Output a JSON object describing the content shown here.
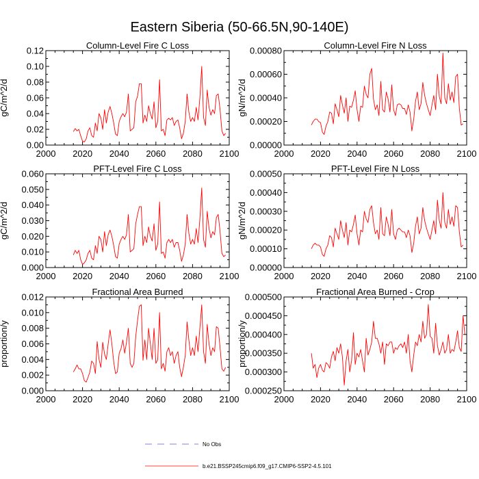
{
  "figure_title": "Eastern Siberia (50-66.5N,90-140E)",
  "legend": {
    "obs_label": "No Obs",
    "model_label": "b.e21.BSSP245cmip6.f09_g17.CMIP6-SSP2-4.5.101",
    "obs_color": "#5a5ac8",
    "model_color": "#ff0000"
  },
  "chart_data": [
    {
      "type": "line",
      "title": "Column-Level Fire C Loss",
      "ylabel": "gC/m^2/d",
      "xlabel": "",
      "xlim": [
        2000,
        2100
      ],
      "ylim": [
        0,
        0.12
      ],
      "x_ticks": [
        "2000",
        "2020",
        "2040",
        "2060",
        "2080",
        "2100"
      ],
      "y_ticks": [
        "0.00",
        "0.02",
        "0.04",
        "0.06",
        "0.08",
        "0.10",
        "0.12"
      ],
      "series": [
        {
          "name": "b.e21.BSSP245cmip6.f09_g17.CMIP6-SSP2-4.5.101",
          "x_start": 2015,
          "x_step": 1,
          "values": [
            0.017,
            0.021,
            0.018,
            0.02,
            0.012,
            0.005,
            0.004,
            0.008,
            0.018,
            0.022,
            0.012,
            0.01,
            0.028,
            0.018,
            0.04,
            0.035,
            0.02,
            0.045,
            0.028,
            0.042,
            0.049,
            0.04,
            0.028,
            0.014,
            0.012,
            0.03,
            0.036,
            0.04,
            0.036,
            0.042,
            0.065,
            0.018,
            0.02,
            0.022,
            0.055,
            0.062,
            0.078,
            0.078,
            0.028,
            0.038,
            0.03,
            0.05,
            0.04,
            0.033,
            0.055,
            0.022,
            0.03,
            0.083,
            0.018,
            0.02,
            0.012,
            0.032,
            0.034,
            0.032,
            0.035,
            0.025,
            0.03,
            0.032,
            0.022,
            0.008,
            0.015,
            0.03,
            0.065,
            0.042,
            0.03,
            0.035,
            0.03,
            0.048,
            0.032,
            0.06,
            0.1,
            0.035,
            0.025,
            0.07,
            0.048,
            0.038,
            0.045,
            0.04,
            0.063,
            0.065,
            0.045,
            0.018,
            0.012,
            0.015
          ]
        }
      ]
    },
    {
      "type": "line",
      "title": "Column-Level Fire N Loss",
      "ylabel": "gN/m^2/d",
      "xlabel": "",
      "xlim": [
        2000,
        2100
      ],
      "ylim": [
        0,
        0.0008
      ],
      "x_ticks": [
        "2000",
        "2020",
        "2040",
        "2060",
        "2080",
        "2100"
      ],
      "y_ticks": [
        "0.00000",
        "0.00020",
        "0.00040",
        "0.00060",
        "0.00080"
      ],
      "series": [
        {
          "name": "b.e21.BSSP245cmip6.f09_g17.CMIP6-SSP2-4.5.101",
          "x_start": 2015,
          "x_step": 1,
          "values": [
            0.00017,
            0.0002,
            0.00022,
            0.00022,
            0.0002,
            0.00019,
            0.00011,
            9e-05,
            0.00016,
            0.0002,
            0.00028,
            0.00027,
            0.00018,
            0.00035,
            0.0003,
            0.00024,
            0.00042,
            0.00034,
            0.00027,
            0.0004,
            0.0002,
            0.00033,
            0.00032,
            0.00038,
            0.00046,
            0.0003,
            0.0002,
            0.00033,
            0.00032,
            0.0005,
            0.00043,
            0.0004,
            0.0006,
            0.00065,
            0.00039,
            0.0003,
            0.00034,
            0.00025,
            0.00054,
            0.0003,
            0.00028,
            0.00045,
            0.00039,
            0.00028,
            0.00051,
            0.0003,
            0.00025,
            0.00034,
            0.00035,
            0.00034,
            0.00031,
            0.00031,
            0.00026,
            0.00034,
            0.00028,
            0.00012,
            0.00022,
            0.00037,
            0.00045,
            0.0003,
            0.00035,
            0.00053,
            0.00042,
            0.00035,
            0.0003,
            0.00025,
            0.00034,
            0.00042,
            0.0003,
            0.0006,
            0.00041,
            0.00035,
            0.00078,
            0.0004,
            0.00035,
            0.00052,
            0.00038,
            0.00045,
            0.00036,
            0.00058,
            0.0006,
            0.00031,
            0.00017,
            0.00018
          ]
        }
      ]
    },
    {
      "type": "line",
      "title": "PFT-Level Fire C Loss",
      "ylabel": "gC/m^2/d",
      "xlabel": "",
      "xlim": [
        2000,
        2100
      ],
      "ylim": [
        0,
        0.06
      ],
      "x_ticks": [
        "2000",
        "2020",
        "2040",
        "2060",
        "2080",
        "2100"
      ],
      "y_ticks": [
        "0.000",
        "0.010",
        "0.020",
        "0.030",
        "0.040",
        "0.050",
        "0.060"
      ],
      "series": [
        {
          "name": "b.e21.BSSP245cmip6.f09_g17.CMIP6-SSP2-4.5.101",
          "x_start": 2015,
          "x_step": 1,
          "values": [
            0.008,
            0.011,
            0.009,
            0.011,
            0.005,
            0.002,
            0.003,
            0.005,
            0.009,
            0.011,
            0.006,
            0.005,
            0.014,
            0.009,
            0.02,
            0.018,
            0.01,
            0.023,
            0.014,
            0.021,
            0.024,
            0.02,
            0.014,
            0.007,
            0.006,
            0.015,
            0.018,
            0.02,
            0.018,
            0.021,
            0.034,
            0.01,
            0.011,
            0.012,
            0.028,
            0.034,
            0.039,
            0.039,
            0.014,
            0.02,
            0.016,
            0.026,
            0.02,
            0.017,
            0.028,
            0.011,
            0.015,
            0.042,
            0.009,
            0.01,
            0.006,
            0.016,
            0.018,
            0.016,
            0.018,
            0.013,
            0.016,
            0.016,
            0.011,
            0.004,
            0.008,
            0.015,
            0.034,
            0.022,
            0.015,
            0.018,
            0.015,
            0.025,
            0.016,
            0.031,
            0.051,
            0.018,
            0.013,
            0.036,
            0.025,
            0.019,
            0.023,
            0.021,
            0.032,
            0.034,
            0.023,
            0.009,
            0.007,
            0.008
          ]
        }
      ]
    },
    {
      "type": "line",
      "title": "PFT-Level Fire N Loss",
      "ylabel": "gN/m^2/d",
      "xlabel": "",
      "xlim": [
        2000,
        2100
      ],
      "ylim": [
        0,
        0.0005
      ],
      "x_ticks": [
        "2000",
        "2020",
        "2040",
        "2060",
        "2080",
        "2100"
      ],
      "y_ticks": [
        "0.00000",
        "0.00010",
        "0.00020",
        "0.00030",
        "0.00040",
        "0.00050"
      ],
      "series": [
        {
          "name": "b.e21.BSSP245cmip6.f09_g17.CMIP6-SSP2-4.5.101",
          "x_start": 2015,
          "x_step": 1,
          "values": [
            0.0001,
            0.00012,
            0.00013,
            0.00012,
            0.00012,
            0.00011,
            7e-05,
            6e-05,
            0.0001,
            0.00012,
            0.00017,
            0.00016,
            0.00011,
            0.00021,
            0.00018,
            0.00015,
            0.00025,
            0.0002,
            0.00016,
            0.00024,
            0.00012,
            0.0002,
            0.00019,
            0.00023,
            0.00028,
            0.00018,
            0.00012,
            0.0002,
            0.00019,
            0.0003,
            0.00026,
            0.00024,
            0.00031,
            0.00033,
            0.00024,
            0.00018,
            0.0002,
            0.00015,
            0.00032,
            0.00018,
            0.00017,
            0.00027,
            0.00023,
            0.00017,
            0.00031,
            0.00018,
            0.00015,
            0.0002,
            0.00021,
            0.0002,
            0.00019,
            0.00019,
            0.00016,
            0.0002,
            0.00017,
            8e-05,
            0.00013,
            0.00022,
            0.00027,
            0.00018,
            0.00021,
            0.00032,
            0.00025,
            0.00021,
            0.00018,
            0.00015,
            0.0002,
            0.00025,
            0.00018,
            0.00036,
            0.00025,
            0.00021,
            0.0004,
            0.00024,
            0.00021,
            0.00031,
            0.00023,
            0.00027,
            0.00022,
            0.00033,
            0.00032,
            0.00019,
            0.00011,
            0.00012
          ]
        }
      ]
    },
    {
      "type": "line",
      "title": "Fractional Area Burned",
      "ylabel": "proportion/y",
      "xlabel": "",
      "xlim": [
        2000,
        2100
      ],
      "ylim": [
        0,
        0.012
      ],
      "x_ticks": [
        "2000",
        "2020",
        "2040",
        "2060",
        "2080",
        "2100"
      ],
      "y_ticks": [
        "0.000",
        "0.002",
        "0.004",
        "0.006",
        "0.008",
        "0.010",
        "0.012"
      ],
      "series": [
        {
          "name": "b.e21.BSSP245cmip6.f09_g17.CMIP6-SSP2-4.5.101",
          "x_start": 2015,
          "x_step": 1,
          "values": [
            0.0024,
            0.0028,
            0.0033,
            0.0028,
            0.0028,
            0.0022,
            0.0013,
            0.0011,
            0.0017,
            0.0024,
            0.0038,
            0.0035,
            0.0022,
            0.0063,
            0.004,
            0.003,
            0.0062,
            0.0047,
            0.004,
            0.006,
            0.0078,
            0.006,
            0.0037,
            0.0022,
            0.0024,
            0.0048,
            0.0054,
            0.0065,
            0.0048,
            0.0062,
            0.008,
            0.0035,
            0.003,
            0.0035,
            0.0069,
            0.009,
            0.0108,
            0.011,
            0.0039,
            0.0065,
            0.004,
            0.008,
            0.006,
            0.004,
            0.008,
            0.0035,
            0.004,
            0.01,
            0.0028,
            0.0035,
            0.0025,
            0.005,
            0.0055,
            0.0045,
            0.005,
            0.0035,
            0.0045,
            0.005,
            0.003,
            0.0018,
            0.003,
            0.0045,
            0.0088,
            0.0065,
            0.0045,
            0.0055,
            0.0045,
            0.007,
            0.005,
            0.008,
            0.011,
            0.005,
            0.0035,
            0.0085,
            0.006,
            0.0045,
            0.0055,
            0.005,
            0.0082,
            0.008,
            0.0055,
            0.0028,
            0.0025,
            0.003
          ]
        }
      ]
    },
    {
      "type": "line",
      "title": "Fractional Area Burned - Crop",
      "ylabel": "proportion/y",
      "xlabel": "",
      "xlim": [
        2000,
        2100
      ],
      "ylim": [
        0.00025,
        0.0005
      ],
      "x_ticks": [
        "2000",
        "2020",
        "2040",
        "2060",
        "2080",
        "2100"
      ],
      "y_ticks": [
        "0.000250",
        "0.000300",
        "0.000350",
        "0.000400",
        "0.000450",
        "0.000500"
      ],
      "series": [
        {
          "name": "b.e21.BSSP245cmip6.f09_g17.CMIP6-SSP2-4.5.101",
          "x_start": 2015,
          "x_step": 1,
          "values": [
            0.00035,
            0.00031,
            0.00032,
            0.000285,
            0.00031,
            0.00032,
            0.000305,
            0.0003,
            0.000325,
            0.00032,
            0.00031,
            0.00034,
            0.000355,
            0.00033,
            0.000365,
            0.00035,
            0.000375,
            0.00034,
            0.000265,
            0.00033,
            0.00036,
            0.0003,
            0.00033,
            0.000405,
            0.00032,
            0.00035,
            0.00034,
            0.00036,
            0.00033,
            0.0003,
            0.00039,
            0.000345,
            0.00036,
            0.00038,
            0.000435,
            0.00039,
            0.00039,
            0.000375,
            0.00035,
            0.00038,
            0.00032,
            0.000375,
            0.00037,
            0.00038,
            0.00038,
            0.00035,
            0.000365,
            0.00036,
            0.00037,
            0.000375,
            0.000365,
            0.00038,
            0.00035,
            0.0004,
            0.00033,
            0.0003,
            0.000345,
            0.00038,
            0.00037,
            0.0004,
            0.00038,
            0.000435,
            0.00039,
            0.0004,
            0.00048,
            0.000395,
            0.00039,
            0.00035,
            0.00043,
            0.00037,
            0.000345,
            0.00036,
            0.00038,
            0.00035,
            0.00036,
            0.0004,
            0.00035,
            0.00036,
            0.000355,
            0.00038,
            0.00041,
            0.000365,
            0.000355,
            0.00045,
            0.0004
          ]
        }
      ]
    }
  ]
}
